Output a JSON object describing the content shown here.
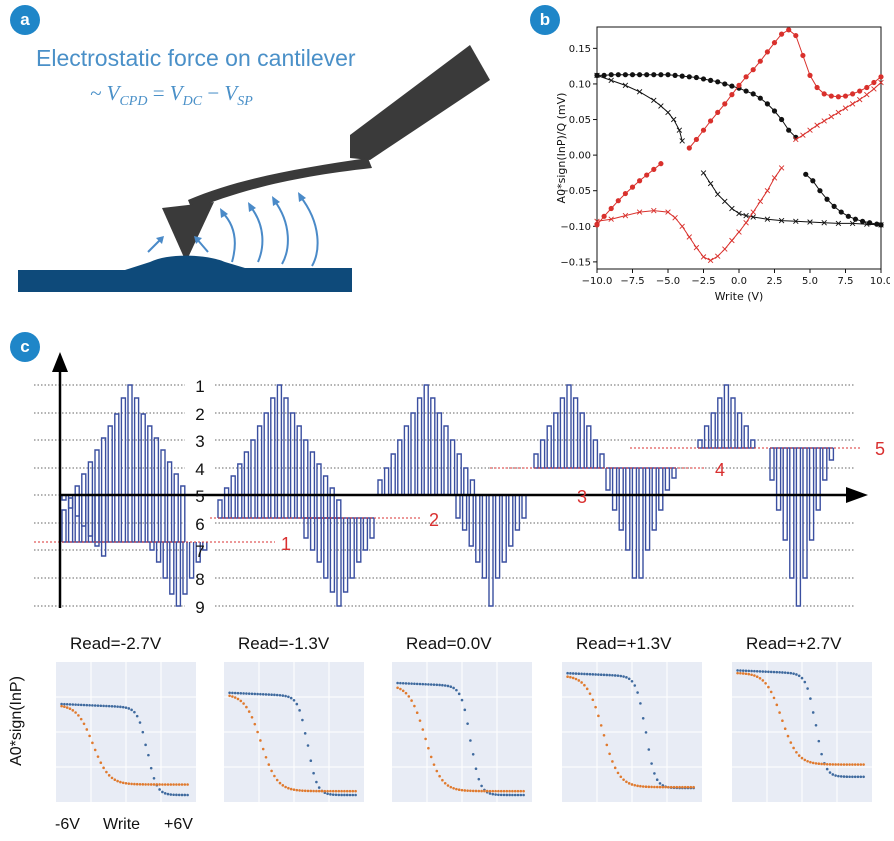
{
  "panels": {
    "a": {
      "badge": "a",
      "title_line1": "Electrostatic force on cantilever",
      "formula_prefix": "~ ",
      "formula_v1": "V",
      "formula_s1": "CPD",
      "formula_eq": " = ",
      "formula_v2": "V",
      "formula_s2": "DC",
      "formula_minus": " − ",
      "formula_v3": "V",
      "formula_s3": "SP",
      "colors": {
        "text": "#4a90c8",
        "substrate": "#0e4a7a",
        "tip": "#3a3a3a",
        "arrows": "#4a8ac8"
      }
    },
    "b": {
      "badge": "b"
    },
    "c": {
      "badge": "c",
      "levels": [
        "1",
        "2",
        "3",
        "4",
        "5",
        "6",
        "7",
        "8",
        "9"
      ],
      "offsets": [
        "1",
        "2",
        "3",
        "4",
        "5"
      ],
      "read_titles": [
        "Read=-2.7V",
        "Read=-1.3V",
        "Read=0.0V",
        "Read=+1.3V",
        "Read=+2.7V"
      ],
      "ylabel": "A0*sign(InP)",
      "x_left": "-6V",
      "x_mid": "Write",
      "x_right": "+6V",
      "colors": {
        "pulse": "#3a4fa0",
        "offset_line": "#d93030",
        "blue_series": "#3f6a9e",
        "orange_series": "#e07a2e",
        "panel_bg": "#e8ecf5"
      }
    }
  },
  "chart_data": {
    "type": "line",
    "xlabel": "Write (V)",
    "ylabel": "A0*sign(InP)/Q (mV)",
    "xlim": [
      -10,
      10
    ],
    "ylim": [
      -0.16,
      0.18
    ],
    "xticks": [
      -10.0,
      -7.5,
      -5.0,
      -2.5,
      0.0,
      2.5,
      5.0,
      7.5,
      10.0
    ],
    "xtick_labels": [
      "−10.0",
      "−7.5",
      "−5.0",
      "−2.5",
      "0.0",
      "2.5",
      "5.0",
      "7.5",
      "10.0"
    ],
    "yticks": [
      -0.15,
      -0.1,
      -0.05,
      0.0,
      0.05,
      0.1,
      0.15
    ],
    "ytick_labels": [
      "−0.15",
      "−0.10",
      "−0.05",
      "0.00",
      "0.05",
      "0.10",
      "0.15"
    ],
    "grid": false,
    "series": [
      {
        "color": "#111111",
        "marker": "dot",
        "x": [
          -10,
          -9.5,
          -9,
          -8.5,
          -8,
          -7.5,
          -7,
          -6.5,
          -6,
          -5.5,
          -5,
          -4.5,
          -4,
          -3.5,
          -3,
          -2.5,
          -2,
          -1.5,
          -1,
          -0.5,
          0,
          0.5,
          1,
          1.5,
          2,
          2.5,
          3,
          3.5,
          4
        ],
        "y": [
          0.112,
          0.112,
          0.113,
          0.113,
          0.113,
          0.113,
          0.113,
          0.113,
          0.113,
          0.113,
          0.113,
          0.112,
          0.111,
          0.11,
          0.109,
          0.107,
          0.105,
          0.103,
          0.1,
          0.097,
          0.094,
          0.09,
          0.086,
          0.08,
          0.072,
          0.062,
          0.05,
          0.035,
          0.025
        ]
      },
      {
        "color": "#111111",
        "marker": "dot",
        "x": [
          4.7,
          5.2,
          5.7,
          6.2,
          6.7,
          7.2,
          7.7,
          8.2,
          8.7,
          9.2,
          9.7,
          10
        ],
        "y": [
          -0.027,
          -0.036,
          -0.05,
          -0.062,
          -0.072,
          -0.08,
          -0.086,
          -0.09,
          -0.093,
          -0.095,
          -0.097,
          -0.098
        ]
      },
      {
        "color": "#111111",
        "marker": "x",
        "x": [
          -10,
          -9,
          -8,
          -7,
          -6,
          -5.5,
          -5,
          -4.6,
          -4.2,
          -4
        ],
        "y": [
          0.112,
          0.105,
          0.098,
          0.089,
          0.077,
          0.069,
          0.06,
          0.05,
          0.035,
          0.02
        ]
      },
      {
        "color": "#111111",
        "marker": "x",
        "x": [
          -2.5,
          -2,
          -1.5,
          -1,
          -0.5,
          0,
          0.5,
          1,
          2,
          3,
          4,
          5,
          6,
          7,
          8,
          9,
          10
        ],
        "y": [
          -0.025,
          -0.04,
          -0.055,
          -0.065,
          -0.075,
          -0.082,
          -0.085,
          -0.087,
          -0.09,
          -0.092,
          -0.093,
          -0.094,
          -0.095,
          -0.096,
          -0.096,
          -0.097,
          -0.098
        ]
      },
      {
        "color": "#d9302c",
        "marker": "dot",
        "x": [
          -3.5,
          -3,
          -2.5,
          -2,
          -1.5,
          -1,
          -0.5,
          0,
          0.5,
          1,
          1.5,
          2,
          2.5,
          3,
          3.5,
          4,
          4.5,
          5,
          5.5,
          6,
          6.5,
          7,
          7.5,
          8,
          8.5,
          9,
          9.5,
          10
        ],
        "y": [
          0.01,
          0.022,
          0.035,
          0.048,
          0.06,
          0.072,
          0.085,
          0.098,
          0.11,
          0.12,
          0.132,
          0.145,
          0.158,
          0.17,
          0.176,
          0.168,
          0.14,
          0.112,
          0.095,
          0.086,
          0.083,
          0.082,
          0.083,
          0.086,
          0.09,
          0.095,
          0.102,
          0.11
        ]
      },
      {
        "color": "#d9302c",
        "marker": "dot",
        "x": [
          -10,
          -9.5,
          -9,
          -8.5,
          -8,
          -7.5,
          -7,
          -6.5,
          -6,
          -5.5
        ],
        "y": [
          -0.098,
          -0.086,
          -0.075,
          -0.064,
          -0.054,
          -0.045,
          -0.036,
          -0.028,
          -0.02,
          -0.012
        ]
      },
      {
        "color": "#d9302c",
        "marker": "x",
        "x": [
          -10,
          -9,
          -8,
          -7,
          -6,
          -5,
          -4.5,
          -4,
          -3.5,
          -3,
          -2.5,
          -2,
          -1.5,
          -1,
          -0.5,
          0,
          0.5,
          1,
          1.5,
          2,
          2.5,
          3
        ],
        "y": [
          -0.093,
          -0.09,
          -0.085,
          -0.08,
          -0.078,
          -0.08,
          -0.088,
          -0.1,
          -0.115,
          -0.13,
          -0.143,
          -0.148,
          -0.142,
          -0.132,
          -0.12,
          -0.108,
          -0.095,
          -0.08,
          -0.065,
          -0.05,
          -0.032,
          -0.018
        ]
      },
      {
        "color": "#d9302c",
        "marker": "x",
        "x": [
          4,
          4.5,
          5,
          5.5,
          6,
          6.5,
          7,
          7.5,
          8,
          8.5,
          9,
          9.5,
          10
        ],
        "y": [
          0.022,
          0.028,
          0.035,
          0.042,
          0.048,
          0.054,
          0.06,
          0.066,
          0.072,
          0.078,
          0.085,
          0.093,
          0.102
        ]
      }
    ]
  }
}
